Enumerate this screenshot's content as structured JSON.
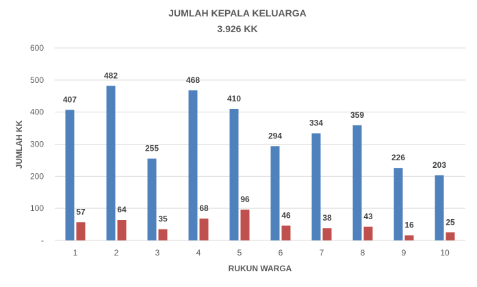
{
  "chart_data": {
    "type": "bar",
    "title": "JUMLAH KEPALA KELUARGA",
    "subtitle": "3.926 KK",
    "xlabel": "RUKUN WARGA",
    "ylabel": "JUMLAH KK",
    "categories": [
      "1",
      "2",
      "3",
      "4",
      "5",
      "6",
      "7",
      "8",
      "9",
      "10"
    ],
    "series": [
      {
        "values": [
          407,
          482,
          255,
          468,
          410,
          294,
          334,
          359,
          226,
          203
        ],
        "color": "#4f81bd"
      },
      {
        "values": [
          57,
          64,
          35,
          68,
          96,
          46,
          38,
          43,
          16,
          25
        ],
        "color": "#c0504d"
      }
    ],
    "ylim": [
      0,
      600
    ],
    "yticks": [
      "-",
      "100",
      "200",
      "300",
      "400",
      "500",
      "600"
    ],
    "grid": true,
    "data_labels": true
  }
}
